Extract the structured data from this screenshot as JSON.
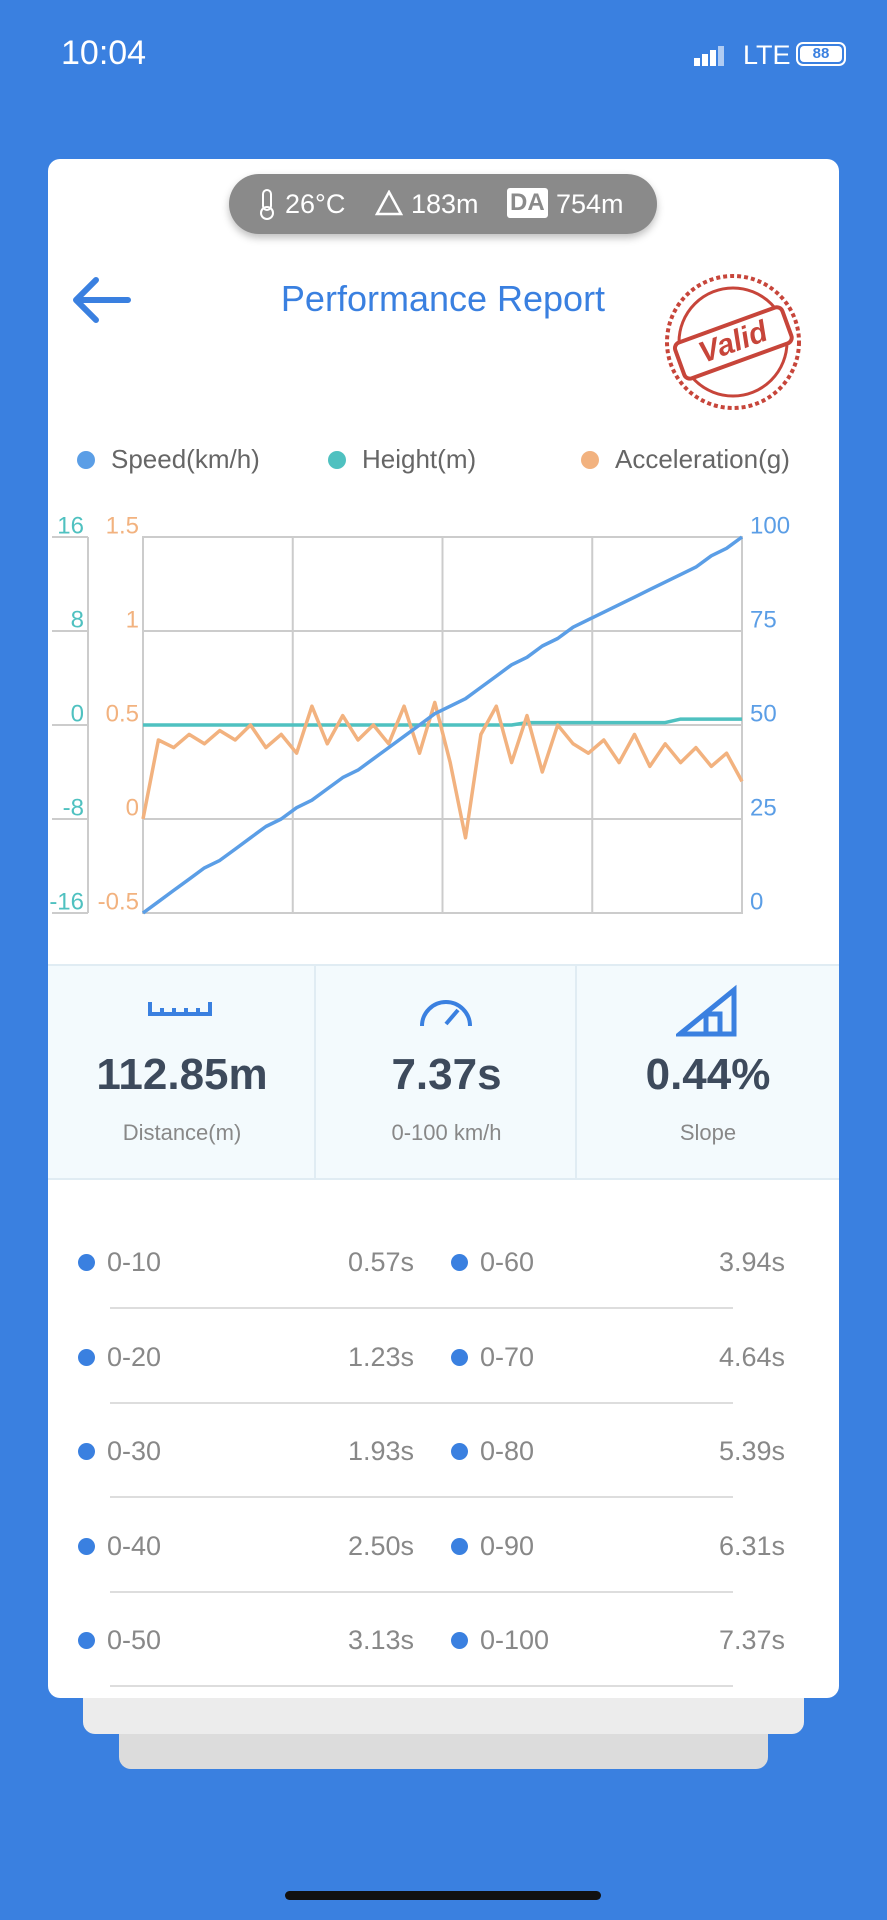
{
  "status_bar": {
    "time": "10:04",
    "network": "LTE",
    "battery": "88"
  },
  "conditions": {
    "temperature": "26°C",
    "altitude": "183m",
    "da_label": "DA",
    "density_altitude": "754m"
  },
  "header": {
    "title": "Performance Report",
    "stamp": "Valid"
  },
  "chart_data": {
    "type": "line",
    "grid": true,
    "series": [
      {
        "name": "Speed(km/h)",
        "color": "#5b9ee6",
        "axis": "y2",
        "values": [
          0,
          3,
          6,
          9,
          12,
          14,
          17,
          20,
          23,
          25,
          28,
          30,
          33,
          36,
          38,
          41,
          44,
          47,
          50,
          53,
          55,
          57,
          60,
          63,
          66,
          68,
          71,
          73,
          76,
          78,
          80,
          82,
          84,
          86,
          88,
          90,
          92,
          95,
          97,
          100
        ]
      },
      {
        "name": "Height(m)",
        "color": "#4fc1c0",
        "axis": "y",
        "values": [
          0,
          0,
          0,
          0,
          0,
          0,
          0,
          0,
          0,
          0,
          0,
          0,
          0,
          0,
          0,
          0,
          0,
          0,
          0,
          0,
          0,
          0,
          0,
          0,
          0,
          0.2,
          0.2,
          0.2,
          0.2,
          0.2,
          0.2,
          0.2,
          0.2,
          0.2,
          0.2,
          0.5,
          0.5,
          0.5,
          0.5,
          0.5
        ]
      },
      {
        "name": "Acceleration(g)",
        "color": "#f2b27f",
        "axis": "y3",
        "values": [
          0,
          0.42,
          0.38,
          0.45,
          0.4,
          0.47,
          0.42,
          0.5,
          0.38,
          0.45,
          0.35,
          0.6,
          0.4,
          0.55,
          0.42,
          0.5,
          0.4,
          0.6,
          0.35,
          0.62,
          0.3,
          -0.1,
          0.45,
          0.6,
          0.3,
          0.55,
          0.25,
          0.5,
          0.4,
          0.35,
          0.42,
          0.3,
          0.45,
          0.28,
          0.4,
          0.3,
          0.38,
          0.28,
          0.35,
          0.2
        ]
      }
    ],
    "ylim": [
      -16,
      16
    ],
    "yticks": [
      -16,
      -8,
      0,
      8,
      16
    ],
    "y2lim": [
      0,
      100
    ],
    "y2ticks": [
      0,
      25,
      50,
      75,
      100
    ],
    "y3lim": [
      -0.5,
      1.5
    ],
    "y3ticks": [
      -0.5,
      0,
      0.5,
      1,
      1.5
    ]
  },
  "stats": [
    {
      "value": "112.85m",
      "label": "Distance(m)"
    },
    {
      "value": "7.37s",
      "label": "0-100 km/h"
    },
    {
      "value": "0.44%",
      "label": "Slope"
    }
  ],
  "splits": [
    {
      "range": "0-10",
      "time": "0.57s"
    },
    {
      "range": "0-20",
      "time": "1.23s"
    },
    {
      "range": "0-30",
      "time": "1.93s"
    },
    {
      "range": "0-40",
      "time": "2.50s"
    },
    {
      "range": "0-50",
      "time": "3.13s"
    },
    {
      "range": "0-60",
      "time": "3.94s"
    },
    {
      "range": "0-70",
      "time": "4.64s"
    },
    {
      "range": "0-80",
      "time": "5.39s"
    },
    {
      "range": "0-90",
      "time": "6.31s"
    },
    {
      "range": "0-100",
      "time": "7.37s"
    }
  ]
}
